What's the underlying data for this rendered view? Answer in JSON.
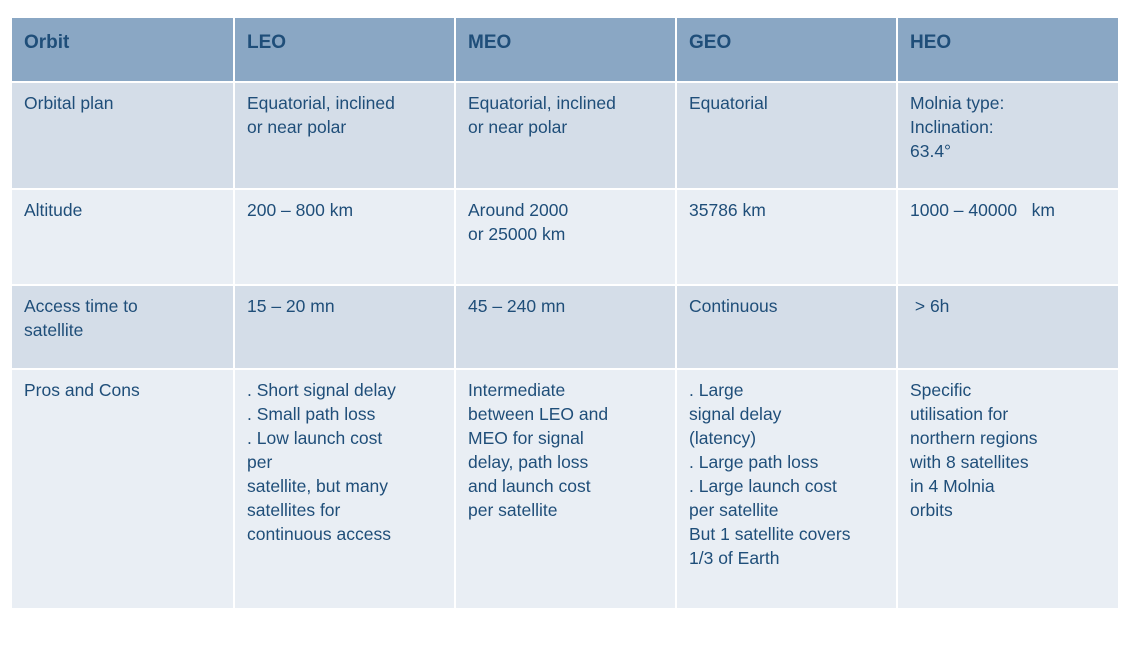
{
  "table": {
    "headers": [
      "Orbit",
      "LEO",
      "MEO",
      "GEO",
      "HEO"
    ],
    "rows": [
      {
        "label": [
          "Orbital plan"
        ],
        "cells": [
          [
            "Equatorial, inclined",
            "or near polar"
          ],
          [
            "Equatorial, inclined",
            "or near polar"
          ],
          [
            "Equatorial"
          ],
          [
            "Molnia type:",
            "Inclination:",
            "63.4°"
          ]
        ]
      },
      {
        "label": [
          "Altitude"
        ],
        "cells": [
          [
            "200 – 800 km"
          ],
          [
            "Around 2000",
            "or 25000 km"
          ],
          [
            "35786 km"
          ],
          [
            "1000 – 40000   km"
          ]
        ]
      },
      {
        "label": [
          "Access time to",
          "satellite"
        ],
        "cells": [
          [
            "15 – 20 mn"
          ],
          [
            "45 – 240 mn"
          ],
          [
            "Continuous"
          ],
          [
            " > 6h"
          ]
        ]
      },
      {
        "label": [
          "Pros and Cons"
        ],
        "cells": [
          [
            ". Short signal delay",
            ". Small path loss",
            ". Low launch cost",
            "per",
            "satellite, but many",
            "satellites for",
            "continuous access"
          ],
          [
            "Intermediate",
            "between LEO and",
            "MEO for signal",
            "delay, path loss",
            "and launch cost",
            "per satellite"
          ],
          [
            ". Large",
            "signal delay",
            "(latency)",
            ". Large path loss",
            ". Large launch cost",
            "per satellite",
            "But 1 satellite covers",
            "1/3 of Earth"
          ],
          [
            "Specific",
            "utilisation for",
            "northern regions",
            "with 8 satellites",
            "in 4 Molnia",
            "orbits"
          ]
        ]
      }
    ]
  },
  "colors": {
    "header_bg": "#8aa7c4",
    "header_text": "#1f4e79",
    "row_dark": "#d4dde8",
    "row_light": "#e9eef4",
    "body_text": "#1f4e79"
  }
}
